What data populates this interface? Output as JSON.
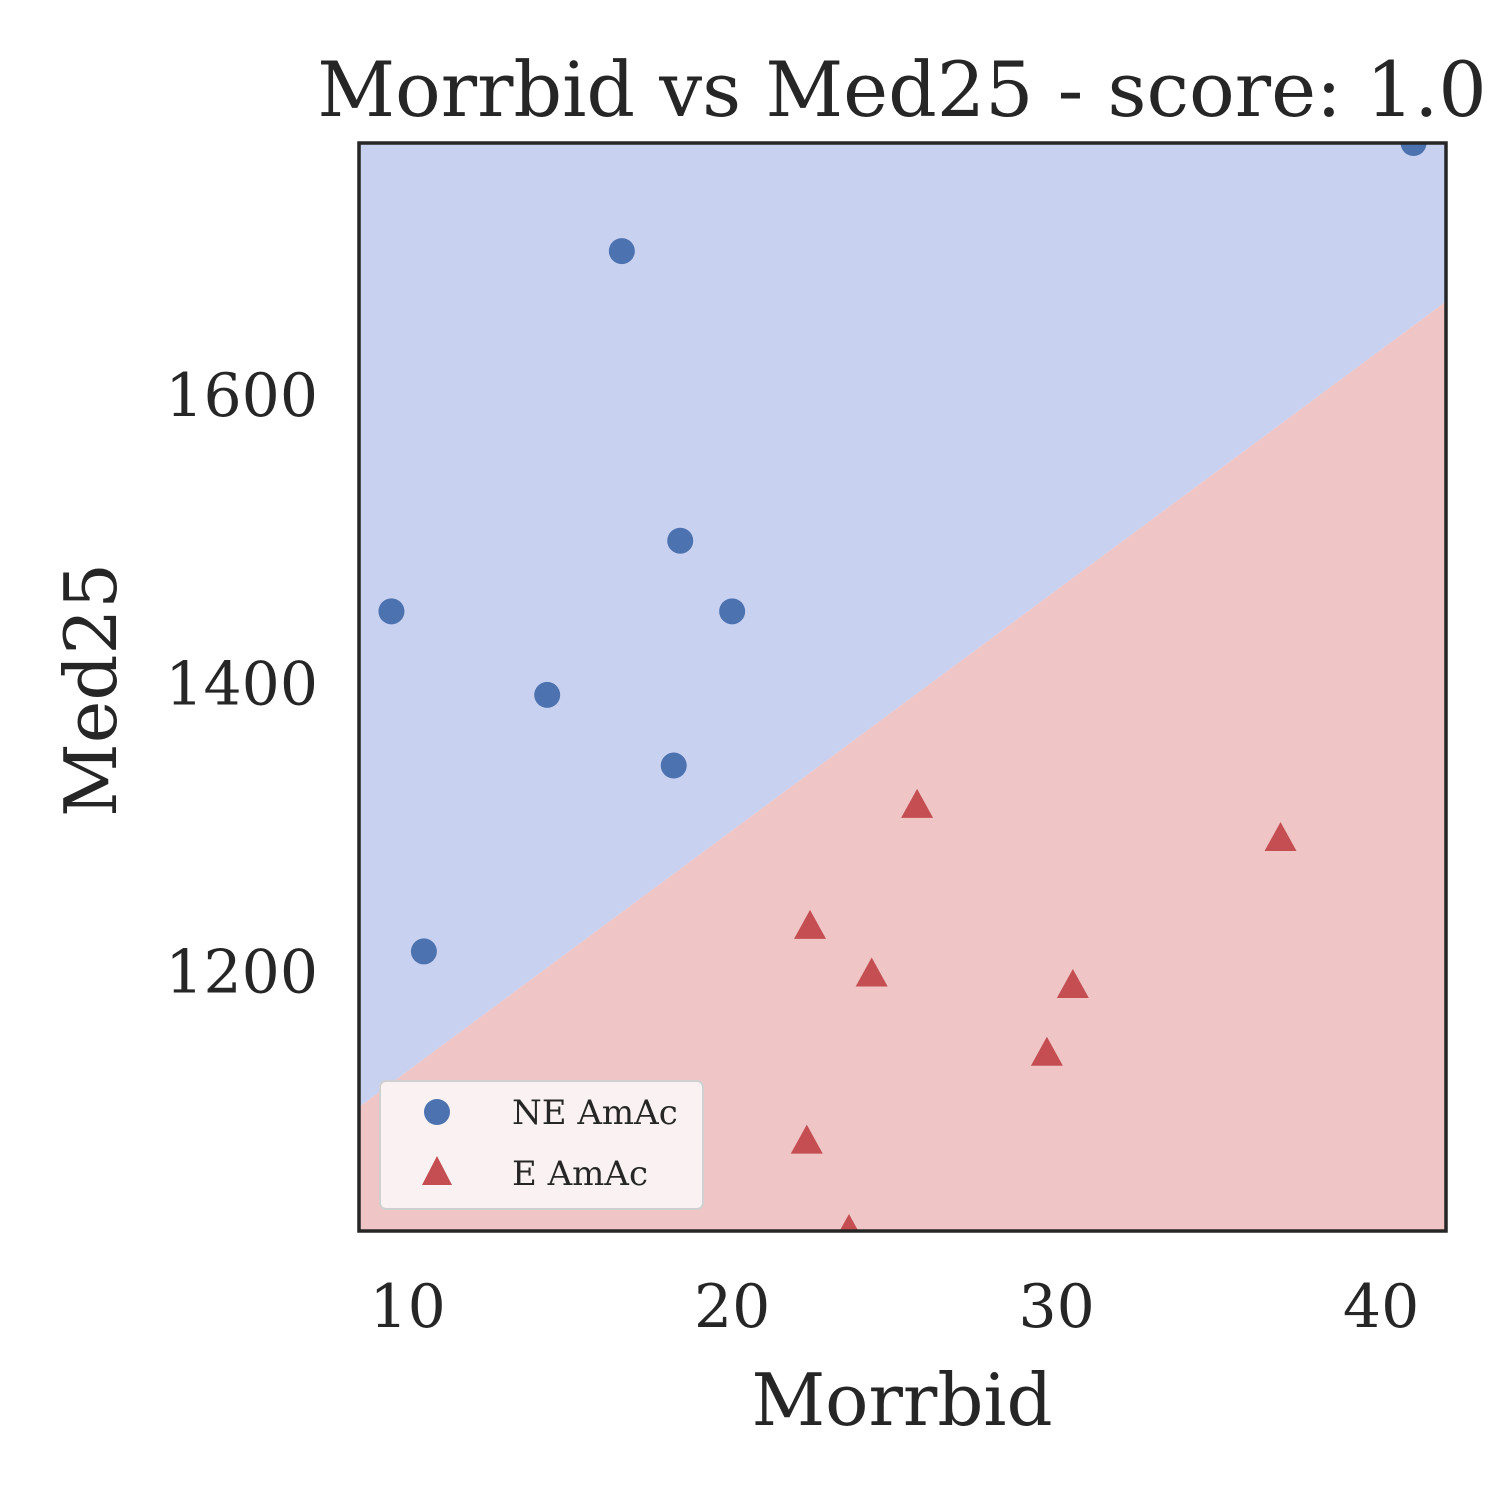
{
  "chart_data": {
    "type": "scatter",
    "title": "Morrbid vs Med25 - score: 1.0",
    "xlabel": "Morrbid",
    "ylabel": "Med25",
    "xlim": [
      8.5,
      42
    ],
    "ylim": [
      1020,
      1775
    ],
    "xticks": [
      10,
      20,
      30,
      40
    ],
    "yticks": [
      1200,
      1400,
      1600
    ],
    "grid": false,
    "legend_position": "bottom-left",
    "decision_boundary": {
      "points": [
        [
          8.5,
          1106
        ],
        [
          42,
          1665
        ]
      ],
      "region_above": "NE AmAc",
      "region_below": "E AmAc",
      "colors": {
        "above": "#c9d1f1",
        "below": "#efc5c5"
      }
    },
    "series": [
      {
        "name": "NE AmAc",
        "marker": "circle",
        "color": "#4c72b0",
        "points": [
          {
            "x": 9.5,
            "y": 1450
          },
          {
            "x": 10.5,
            "y": 1214
          },
          {
            "x": 14.3,
            "y": 1392
          },
          {
            "x": 16.6,
            "y": 1700
          },
          {
            "x": 18.2,
            "y": 1343
          },
          {
            "x": 18.4,
            "y": 1499
          },
          {
            "x": 20.0,
            "y": 1450
          },
          {
            "x": 41.0,
            "y": 1775
          }
        ]
      },
      {
        "name": "E AmAc",
        "marker": "triangle",
        "color": "#c44e52",
        "points": [
          {
            "x": 22.3,
            "y": 1082
          },
          {
            "x": 22.4,
            "y": 1231
          },
          {
            "x": 23.6,
            "y": 1020
          },
          {
            "x": 24.3,
            "y": 1198
          },
          {
            "x": 25.7,
            "y": 1315
          },
          {
            "x": 29.7,
            "y": 1143
          },
          {
            "x": 30.5,
            "y": 1190
          },
          {
            "x": 36.9,
            "y": 1292
          }
        ]
      }
    ]
  }
}
